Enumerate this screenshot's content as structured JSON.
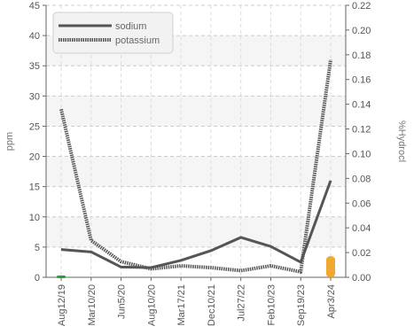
{
  "chart_data": {
    "type": "line",
    "categories": [
      "Aug12/19",
      "Mar10/20",
      "Jun5/20",
      "Aug10/20",
      "Mar17/21",
      "Dec10/21",
      "Jul27/22",
      "Feb10/23",
      "Sep19/23",
      "Apr3/24"
    ],
    "series": [
      {
        "name": "sodium",
        "axis": "left",
        "style": "solid",
        "color": "#555555",
        "values": [
          4.6,
          4.2,
          1.7,
          1.6,
          2.8,
          4.4,
          6.6,
          5.1,
          2.5,
          16.0
        ]
      },
      {
        "name": "potassium",
        "axis": "left",
        "style": "dotted",
        "color": "#555555",
        "values": [
          27.8,
          6.1,
          2.6,
          1.4,
          1.9,
          1.6,
          1.1,
          1.9,
          0.9,
          36.0
        ]
      }
    ],
    "ylabel": "ppm",
    "ylim": [
      0,
      45
    ],
    "yticks": [
      "0",
      "5",
      "10",
      "15",
      "20",
      "25",
      "30",
      "35",
      "40",
      "45"
    ],
    "y2label": "%Hydrocl",
    "y2lim": [
      0,
      0.22
    ],
    "y2ticks": [
      "0.00",
      "0.02",
      "0.04",
      "0.06",
      "0.08",
      "0.10",
      "0.12",
      "0.14",
      "0.16",
      "0.18",
      "0.20",
      "0.22"
    ],
    "grid": true,
    "legend_position": "top-left",
    "markers": [
      {
        "category_index": 0,
        "axis": "right",
        "value": 0.0,
        "color": "#2a9d2a"
      },
      {
        "category_index": 9,
        "axis": "right",
        "value": 0.017,
        "color": "#f0a830"
      }
    ]
  }
}
